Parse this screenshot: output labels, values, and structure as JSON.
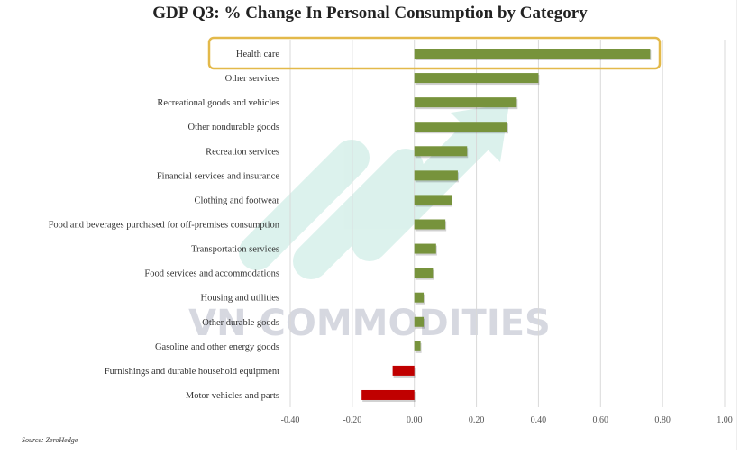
{
  "chart_data": {
    "type": "bar",
    "orientation": "horizontal",
    "title": "GDP Q3: % Change In Personal Consumption by Category",
    "categories": [
      "Health care",
      "Other services",
      "Recreational goods and vehicles",
      "Other nondurable goods",
      "Recreation services",
      "Financial services and insurance",
      "Clothing and footwear",
      "Food and beverages purchased for off-premises consumption",
      "Transportation services",
      "Food services and accommodations",
      "Housing and utilities",
      "Other durable goods",
      "Gasoline and other energy goods",
      "Furnishings and durable household equipment",
      "Motor vehicles and parts"
    ],
    "values": [
      0.76,
      0.4,
      0.33,
      0.3,
      0.17,
      0.14,
      0.12,
      0.1,
      0.07,
      0.06,
      0.03,
      0.03,
      0.02,
      -0.07,
      -0.17
    ],
    "xlim": [
      -0.4,
      1.0
    ],
    "xticks": [
      "-0.40",
      "-0.20",
      "0.00",
      "0.20",
      "0.40",
      "0.60",
      "0.80",
      "1.00"
    ],
    "xtick_values": [
      -0.4,
      -0.2,
      0,
      0.2,
      0.4,
      0.6,
      0.8,
      1.0
    ],
    "grid": "vertical",
    "highlighted_category": "Health care",
    "colors": {
      "positive": "#77933c",
      "negative": "#c00000",
      "highlight_box": "#e3b94a",
      "grid": "#d9d9d9"
    }
  },
  "source": "Source: ZeroHedge",
  "watermark": "VN COMMODITIES"
}
